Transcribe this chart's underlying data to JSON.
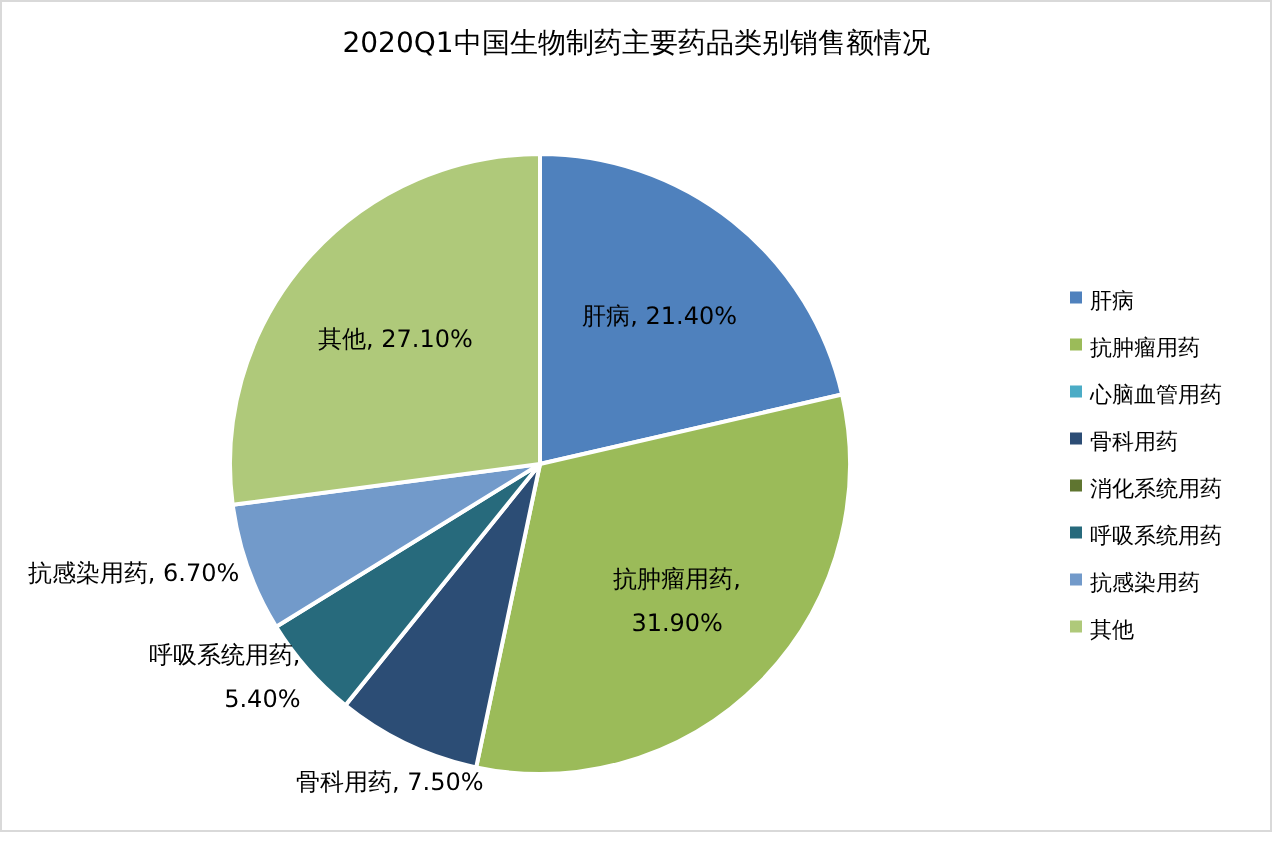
{
  "chart_data": {
    "type": "pie",
    "title": "2020Q1中国生物制药主要药品类别销售额情况",
    "categories": [
      "肝病",
      "抗肿瘤用药",
      "心脑血管用药",
      "骨科用药",
      "消化系统用药",
      "呼吸系统用药",
      "抗感染用药",
      "其他"
    ],
    "values": [
      21.4,
      31.9,
      0,
      7.5,
      0,
      5.4,
      6.7,
      27.1
    ],
    "colors": [
      "#4f81bd",
      "#9bbb59",
      "#4bacc6",
      "#2c4d75",
      "#5f7530",
      "#276a7c",
      "#729aca",
      "#afc97a"
    ],
    "value_labels": [
      "肝病, 21.40%",
      "抗肿瘤用药, 31.90%",
      null,
      "骨科用药, 7.50%",
      null,
      "呼吸系统用药, 5.40%",
      "抗感染用药, 6.70%",
      "其他, 27.10%"
    ],
    "legend": "right"
  }
}
